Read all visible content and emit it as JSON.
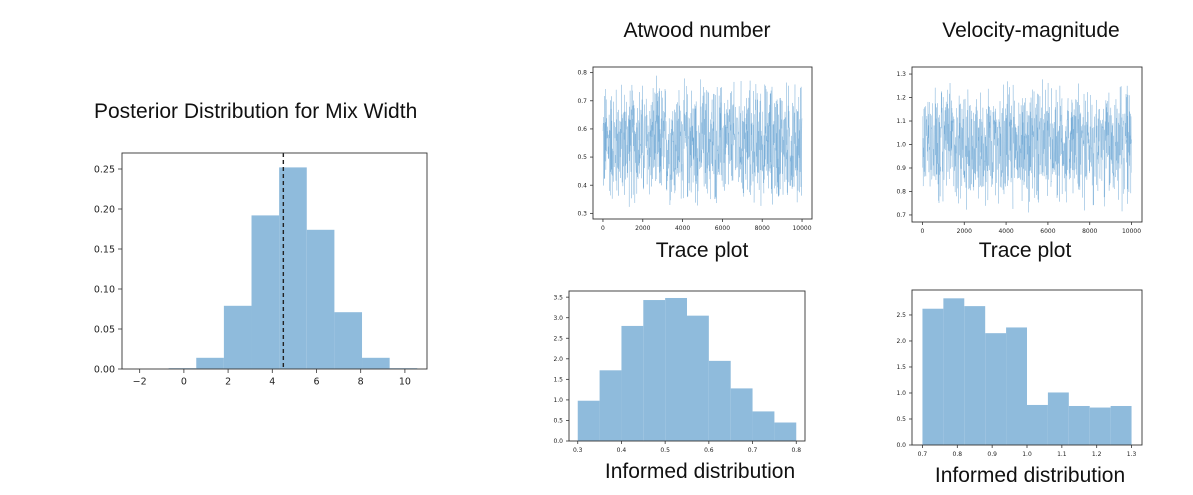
{
  "main": {
    "title": "Posterior Distribution for Mix Width"
  },
  "columns": [
    {
      "title": "Atwood number",
      "trace_caption": "Trace plot",
      "hist_caption": "Informed distribution"
    },
    {
      "title": "Velocity-magnitude",
      "trace_caption": "Trace plot",
      "hist_caption": "Informed distribution"
    }
  ],
  "colors": {
    "bar": "#8fbbdc",
    "trace": "#5b9bd0",
    "axis": "#333333",
    "marker": "#222222"
  },
  "chart_data": [
    {
      "id": "mix-width-hist",
      "type": "bar",
      "title": "Posterior Distribution for Mix Width",
      "bin_edges": [
        -1.94,
        -0.69,
        0.56,
        1.81,
        3.06,
        4.31,
        5.56,
        6.81,
        8.06,
        9.31,
        10.56
      ],
      "values": [
        0.0,
        0.001,
        0.014,
        0.079,
        0.192,
        0.252,
        0.174,
        0.071,
        0.014,
        0.001
      ],
      "xlim": [
        -2.8,
        11.0
      ],
      "ylim": [
        0,
        0.27
      ],
      "xticks": [
        -2,
        0,
        2,
        4,
        6,
        8,
        10
      ],
      "xtick_labels": [
        "−2",
        "0",
        "2",
        "4",
        "6",
        "8",
        "10"
      ],
      "yticks": [
        0.0,
        0.05,
        0.1,
        0.15,
        0.2,
        0.25
      ],
      "ytick_labels": [
        "0.00",
        "0.05",
        "0.10",
        "0.15",
        "0.20",
        "0.25"
      ],
      "marker_line": 4.5,
      "grid": false
    },
    {
      "id": "atwood-trace",
      "type": "line",
      "xlim": [
        -500,
        10500
      ],
      "ylim": [
        0.28,
        0.82
      ],
      "n_samples": 10000,
      "value_range": [
        0.3,
        0.8
      ],
      "xticks": [
        0,
        2000,
        4000,
        6000,
        8000,
        10000
      ],
      "xtick_labels": [
        "0",
        "2000",
        "4000",
        "6000",
        "8000",
        "10000"
      ],
      "yticks": [
        0.3,
        0.4,
        0.5,
        0.6,
        0.7,
        0.8
      ],
      "ytick_labels": [
        "0.3",
        "0.4",
        "0.5",
        "0.6",
        "0.7",
        "0.8"
      ],
      "grid": false
    },
    {
      "id": "velocity-trace",
      "type": "line",
      "xlim": [
        -500,
        10500
      ],
      "ylim": [
        0.67,
        1.33
      ],
      "n_samples": 10000,
      "value_range": [
        0.7,
        1.3
      ],
      "xticks": [
        0,
        2000,
        4000,
        6000,
        8000,
        10000
      ],
      "xtick_labels": [
        "0",
        "2000",
        "4000",
        "6000",
        "8000",
        "10000"
      ],
      "yticks": [
        0.7,
        0.8,
        0.9,
        1.0,
        1.1,
        1.2,
        1.3
      ],
      "ytick_labels": [
        "0.7",
        "0.8",
        "0.9",
        "1.0",
        "1.1",
        "1.2",
        "1.3"
      ],
      "grid": false
    },
    {
      "id": "atwood-hist",
      "type": "bar",
      "bin_edges": [
        0.3,
        0.35,
        0.4,
        0.45,
        0.5,
        0.55,
        0.6,
        0.65,
        0.7,
        0.75,
        0.8
      ],
      "values": [
        0.98,
        1.72,
        2.8,
        3.43,
        3.48,
        3.05,
        1.95,
        1.28,
        0.72,
        0.45
      ],
      "xlim": [
        0.28,
        0.82
      ],
      "ylim": [
        0,
        3.65
      ],
      "xticks": [
        0.3,
        0.4,
        0.5,
        0.6,
        0.7,
        0.8
      ],
      "xtick_labels": [
        "0.3",
        "0.4",
        "0.5",
        "0.6",
        "0.7",
        "0.8"
      ],
      "yticks": [
        0.0,
        0.5,
        1.0,
        1.5,
        2.0,
        2.5,
        3.0,
        3.5
      ],
      "ytick_labels": [
        "0.0",
        "0.5",
        "1.0",
        "1.5",
        "2.0",
        "2.5",
        "3.0",
        "3.5"
      ],
      "grid": false
    },
    {
      "id": "velocity-hist",
      "type": "bar",
      "bin_edges": [
        0.7,
        0.76,
        0.82,
        0.88,
        0.94,
        1.0,
        1.06,
        1.12,
        1.18,
        1.24,
        1.3
      ],
      "values": [
        2.62,
        2.82,
        2.67,
        2.15,
        2.26,
        0.77,
        1.01,
        0.75,
        0.72,
        0.75
      ],
      "xlim": [
        0.67,
        1.33
      ],
      "ylim": [
        0,
        2.98
      ],
      "xticks": [
        0.7,
        0.8,
        0.9,
        1.0,
        1.1,
        1.2,
        1.3
      ],
      "xtick_labels": [
        "0.7",
        "0.8",
        "0.9",
        "1.0",
        "1.1",
        "1.2",
        "1.3"
      ],
      "yticks": [
        0.0,
        0.5,
        1.0,
        1.5,
        2.0,
        2.5
      ],
      "ytick_labels": [
        "0.0",
        "0.5",
        "1.0",
        "1.5",
        "2.0",
        "2.5"
      ],
      "grid": false
    }
  ]
}
